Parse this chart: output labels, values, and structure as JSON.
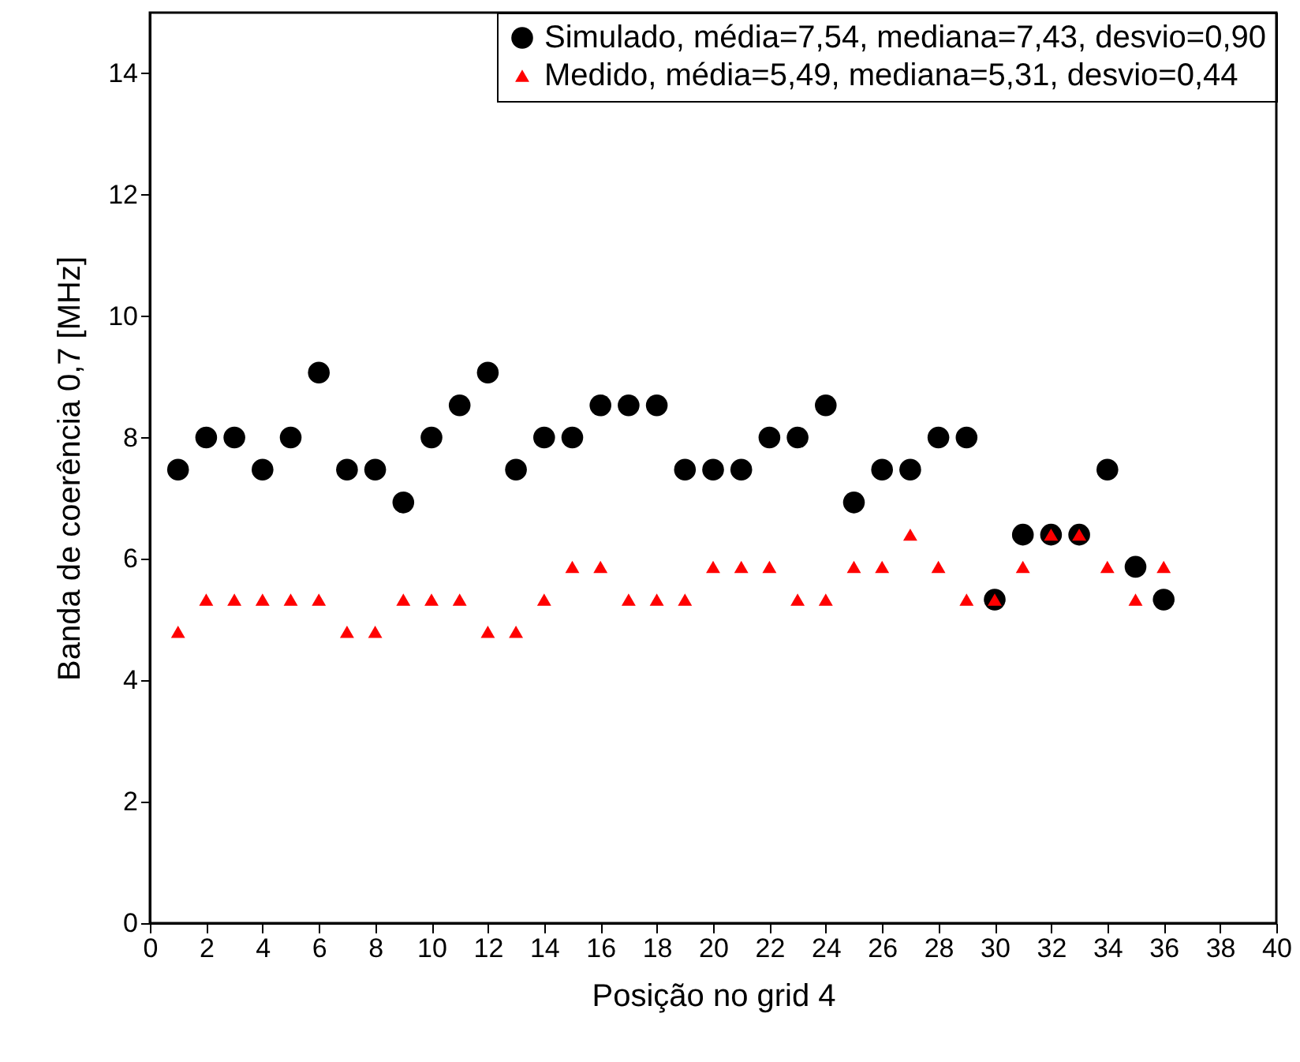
{
  "chart_data": {
    "type": "scatter",
    "xlabel": "Posição no grid 4",
    "ylabel": "Banda de coerência 0,7 [MHz]",
    "x": [
      1,
      2,
      3,
      4,
      5,
      6,
      7,
      8,
      9,
      10,
      11,
      12,
      13,
      14,
      15,
      16,
      17,
      18,
      19,
      20,
      21,
      22,
      23,
      24,
      25,
      26,
      27,
      28,
      29,
      30,
      31,
      32,
      33,
      34,
      35,
      36
    ],
    "series": [
      {
        "name": "Simulado, média=7,54, mediana=7,43, desvio=0,90",
        "color": "#000000",
        "marker": "circle",
        "values": [
          7.47,
          8,
          8,
          7.47,
          8,
          9.07,
          7.47,
          7.47,
          6.93,
          8,
          8.53,
          9.07,
          7.47,
          8,
          8,
          8.53,
          8.53,
          8.53,
          7.47,
          7.47,
          7.47,
          8,
          8,
          8.53,
          6.93,
          7.47,
          7.47,
          8,
          8,
          5.33,
          6.4,
          6.4,
          6.4,
          7.47,
          5.87,
          5.33
        ]
      },
      {
        "name": "Medido,    média=5,49, mediana=5,31, desvio=0,44",
        "color": "#ff0000",
        "marker": "triangle",
        "values": [
          4.8,
          5.33,
          5.33,
          5.33,
          5.33,
          5.33,
          4.8,
          4.8,
          5.33,
          5.33,
          5.33,
          4.8,
          4.8,
          5.33,
          5.87,
          5.87,
          5.33,
          5.33,
          5.33,
          5.87,
          5.87,
          5.87,
          5.33,
          5.33,
          5.87,
          5.87,
          6.4,
          5.87,
          5.33,
          5.33,
          5.87,
          6.4,
          6.4,
          5.87,
          5.33,
          5.87
        ]
      }
    ],
    "xlim": [
      0,
      40
    ],
    "xticks": [
      0,
      2,
      4,
      6,
      8,
      10,
      12,
      14,
      16,
      18,
      20,
      22,
      24,
      26,
      28,
      30,
      32,
      34,
      36,
      38,
      40
    ],
    "ylim": [
      0,
      15
    ],
    "yticks": [
      0,
      2,
      4,
      6,
      8,
      10,
      12,
      14
    ],
    "grid": false,
    "legend": "top right"
  }
}
